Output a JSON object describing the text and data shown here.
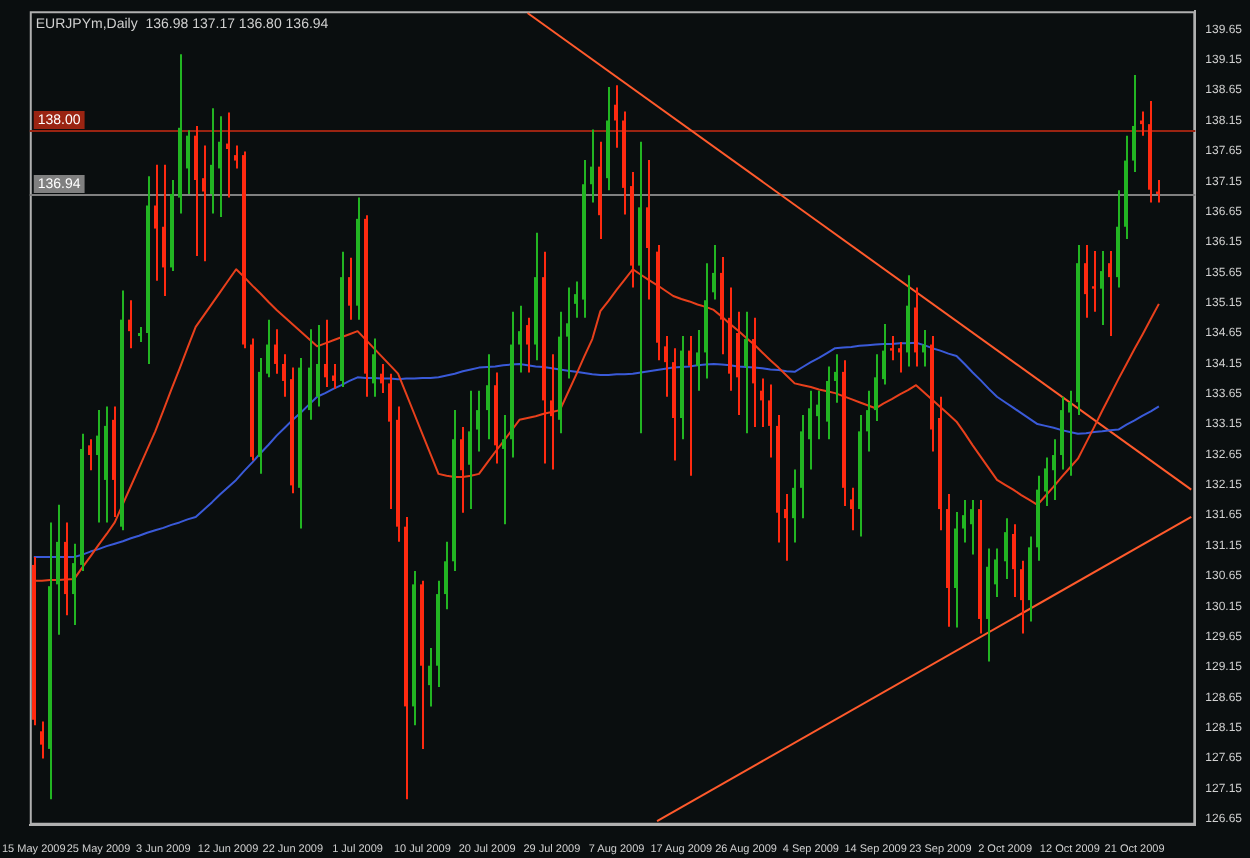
{
  "chart_data": {
    "type": "candlestick",
    "title": "EURJPYm,Daily  136.98 137.17 136.80 136.94",
    "categories": [
      "15 May 2009",
      null,
      null,
      null,
      null,
      null,
      null,
      null,
      "25 May 2009",
      null,
      null,
      null,
      null,
      null,
      null,
      null,
      "3 Jun 2009",
      null,
      null,
      null,
      null,
      null,
      null,
      null,
      "12 Jun 2009",
      null,
      null,
      null,
      null,
      null,
      null,
      null,
      "22 Jun 2009",
      null,
      null,
      null,
      null,
      null,
      null,
      null,
      "1 Jul 2009",
      null,
      null,
      null,
      null,
      null,
      null,
      null,
      "10 Jul 2009",
      null,
      null,
      null,
      null,
      null,
      null,
      null,
      "20 Jul 2009",
      null,
      null,
      null,
      null,
      null,
      null,
      null,
      "29 Jul 2009",
      null,
      null,
      null,
      null,
      null,
      null,
      null,
      "7 Aug 2009",
      null,
      null,
      null,
      null,
      null,
      null,
      null,
      "17 Aug 2009",
      null,
      null,
      null,
      null,
      null,
      null,
      null,
      "26 Aug 2009",
      null,
      null,
      null,
      null,
      null,
      null,
      null,
      "4 Sep 2009",
      null,
      null,
      null,
      null,
      null,
      null,
      null,
      "14 Sep 2009",
      null,
      null,
      null,
      null,
      null,
      null,
      null,
      "23 Sep 2009",
      null,
      null,
      null,
      null,
      null,
      null,
      null,
      "2 Oct 2009",
      null,
      null,
      null,
      null,
      null,
      null,
      null,
      "12 Oct 2009",
      null,
      null,
      null,
      null,
      null,
      null,
      null,
      "21 Oct 2009",
      null,
      null,
      null,
      null,
      null,
      null,
      null
    ],
    "ohlc": [
      [
        130.83,
        130.96,
        128.19,
        128.28
      ],
      [
        128.09,
        128.25,
        127.64,
        127.87
      ],
      [
        127.8,
        131.53,
        126.97,
        130.48
      ],
      [
        130.51,
        131.82,
        129.68,
        131.21
      ],
      [
        131.21,
        131.53,
        130.0,
        130.35
      ],
      [
        130.35,
        131.18,
        129.84,
        130.86
      ],
      [
        130.83,
        132.99,
        130.73,
        132.74
      ],
      [
        132.8,
        132.9,
        132.39,
        132.64
      ],
      [
        132.64,
        133.38,
        131.53,
        132.96
      ],
      [
        132.23,
        133.44,
        131.53,
        133.12
      ],
      [
        133.22,
        133.44,
        131.62,
        132.23
      ],
      [
        131.46,
        135.35,
        131.4,
        134.87
      ],
      [
        134.87,
        135.19,
        134.4,
        134.68
      ],
      [
        134.6,
        134.75,
        134.5,
        134.65
      ],
      [
        134.65,
        137.23,
        134.14,
        136.75
      ],
      [
        136.75,
        137.42,
        135.51,
        136.37
      ],
      [
        136.4,
        137.42,
        135.26,
        135.73
      ],
      [
        135.73,
        137.17,
        135.67,
        136.94
      ],
      [
        136.88,
        139.24,
        136.62,
        138.03
      ],
      [
        137.36,
        137.99,
        136.94,
        137.9
      ],
      [
        137.9,
        138.06,
        135.92,
        137.17
      ],
      [
        137.2,
        137.74,
        135.83,
        136.98
      ],
      [
        136.94,
        138.35,
        136.62,
        137.42
      ],
      [
        137.36,
        138.22,
        136.56,
        137.8
      ],
      [
        137.77,
        138.28,
        136.88,
        137.68
      ],
      [
        137.58,
        137.74,
        137.36,
        137.49
      ],
      [
        137.58,
        137.64,
        134.4,
        134.46
      ],
      [
        134.46,
        134.56,
        132.55,
        132.61
      ],
      [
        132.61,
        134.24,
        132.33,
        134.01
      ],
      [
        133.98,
        134.87,
        133.92,
        134.46
      ],
      [
        134.46,
        134.71,
        133.98,
        134.14
      ],
      [
        134.14,
        134.3,
        133.6,
        133.86
      ],
      [
        133.89,
        134.08,
        132.01,
        132.14
      ],
      [
        132.1,
        134.24,
        131.43,
        134.08
      ],
      [
        133.38,
        134.71,
        133.22,
        134.08
      ],
      [
        133.6,
        134.78,
        133.44,
        134.14
      ],
      [
        134.14,
        134.87,
        133.76,
        133.92
      ],
      [
        133.95,
        134.14,
        133.73,
        133.86
      ],
      [
        133.86,
        135.99,
        133.76,
        135.57
      ],
      [
        135.57,
        135.89,
        134.87,
        135.1
      ],
      [
        135.1,
        136.88,
        134.87,
        136.53
      ],
      [
        136.53,
        136.59,
        133.6,
        133.98
      ],
      [
        133.82,
        134.56,
        133.6,
        134.3
      ],
      [
        133.98,
        134.14,
        133.66,
        133.82
      ],
      [
        133.82,
        133.98,
        131.75,
        133.19
      ],
      [
        133.22,
        133.44,
        131.21,
        131.46
      ],
      [
        131.46,
        131.62,
        126.97,
        128.5
      ],
      [
        128.5,
        130.73,
        128.19,
        130.51
      ],
      [
        130.51,
        130.57,
        127.8,
        129.17
      ],
      [
        128.85,
        129.46,
        128.5,
        129.17
      ],
      [
        129.17,
        130.57,
        128.82,
        130.35
      ],
      [
        130.35,
        131.21,
        130.1,
        130.89
      ],
      [
        130.89,
        133.38,
        130.73,
        132.9
      ],
      [
        132.9,
        133.1,
        131.69,
        132.39
      ],
      [
        132.48,
        133.7,
        131.75,
        133.03
      ],
      [
        133.06,
        133.7,
        132.7,
        133.38
      ],
      [
        133.38,
        134.3,
        132.9,
        133.79
      ],
      [
        133.79,
        134.0,
        132.5,
        132.8
      ],
      [
        132.74,
        133.3,
        131.5,
        132.9
      ],
      [
        132.9,
        135.0,
        132.6,
        134.46
      ],
      [
        134.46,
        135.1,
        134.0,
        134.68
      ],
      [
        134.78,
        134.9,
        134.0,
        134.46
      ],
      [
        134.46,
        136.3,
        134.2,
        135.57
      ],
      [
        135.57,
        135.99,
        132.5,
        133.54
      ],
      [
        133.54,
        134.3,
        132.4,
        133.28
      ],
      [
        133.22,
        135.0,
        133.0,
        134.59
      ],
      [
        134.59,
        135.4,
        133.9,
        134.81
      ],
      [
        135.13,
        135.5,
        134.9,
        135.29
      ],
      [
        135.2,
        137.5,
        134.9,
        137.1
      ],
      [
        137.1,
        138.0,
        136.8,
        137.39
      ],
      [
        137.39,
        137.8,
        136.2,
        136.59
      ],
      [
        137.2,
        138.7,
        137.0,
        138.15
      ],
      [
        138.41,
        138.73,
        137.7,
        138.15
      ],
      [
        138.15,
        138.3,
        136.6,
        137.04
      ],
      [
        137.07,
        137.3,
        135.4,
        135.76
      ],
      [
        135.76,
        137.8,
        133.0,
        136.72
      ],
      [
        136.72,
        137.5,
        135.2,
        136.05
      ],
      [
        135.99,
        136.1,
        134.2,
        134.49
      ],
      [
        134.43,
        134.6,
        133.6,
        134.17
      ],
      [
        134.17,
        134.4,
        132.55,
        133.25
      ],
      [
        133.25,
        134.6,
        132.9,
        134.36
      ],
      [
        134.36,
        134.6,
        132.3,
        134.11
      ],
      [
        134.11,
        134.7,
        133.7,
        134.33
      ],
      [
        134.33,
        135.8,
        133.9,
        135.19
      ],
      [
        135.32,
        136.1,
        135.2,
        135.64
      ],
      [
        135.64,
        135.9,
        134.3,
        134.87
      ],
      [
        134.9,
        135.4,
        133.7,
        133.98
      ],
      [
        134.65,
        135.0,
        133.3,
        133.92
      ],
      [
        134.1,
        135.0,
        133.0,
        134.55
      ],
      [
        134.55,
        134.9,
        133.1,
        133.82
      ],
      [
        133.7,
        133.9,
        133.1,
        133.54
      ],
      [
        133.54,
        133.8,
        132.6,
        133.12
      ],
      [
        133.12,
        133.3,
        131.2,
        131.69
      ],
      [
        131.75,
        132.0,
        130.9,
        131.6
      ],
      [
        131.6,
        132.4,
        131.2,
        132.1
      ],
      [
        132.1,
        133.3,
        131.6,
        133.03
      ],
      [
        132.9,
        133.7,
        132.4,
        133.41
      ],
      [
        133.28,
        133.7,
        132.9,
        133.47
      ],
      [
        133.19,
        134.1,
        132.9,
        133.86
      ],
      [
        133.86,
        134.3,
        133.5,
        134.01
      ],
      [
        134.01,
        134.2,
        131.8,
        132.1
      ],
      [
        131.91,
        132.1,
        131.4,
        131.75
      ],
      [
        131.75,
        133.3,
        131.3,
        133.03
      ],
      [
        133.03,
        133.7,
        132.7,
        133.38
      ],
      [
        133.38,
        134.3,
        133.2,
        133.92
      ],
      [
        133.89,
        134.8,
        133.8,
        134.36
      ],
      [
        134.4,
        134.6,
        134.2,
        134.36
      ],
      [
        134.4,
        134.5,
        134.0,
        134.33
      ],
      [
        134.33,
        135.6,
        134.1,
        135.1
      ],
      [
        135.07,
        135.4,
        134.1,
        134.33
      ],
      [
        134.33,
        134.7,
        134.1,
        134.46
      ],
      [
        134.46,
        134.6,
        132.7,
        133.06
      ],
      [
        133.25,
        133.6,
        131.4,
        131.75
      ],
      [
        131.75,
        132.0,
        129.81,
        130.45
      ],
      [
        130.45,
        131.7,
        129.8,
        131.43
      ],
      [
        131.43,
        131.9,
        131.2,
        131.65
      ],
      [
        131.5,
        131.9,
        131.0,
        131.75
      ],
      [
        131.75,
        131.9,
        129.7,
        129.94
      ],
      [
        129.94,
        131.1,
        129.24,
        130.8
      ],
      [
        130.51,
        131.1,
        130.3,
        130.92
      ],
      [
        130.89,
        131.6,
        130.6,
        131.37
      ],
      [
        131.34,
        131.5,
        130.3,
        130.76
      ],
      [
        130.76,
        130.9,
        129.7,
        130.25
      ],
      [
        130.25,
        131.3,
        129.9,
        131.12
      ],
      [
        131.12,
        132.3,
        130.9,
        132.07
      ],
      [
        132.04,
        132.6,
        131.8,
        132.42
      ],
      [
        132.39,
        132.9,
        131.9,
        132.64
      ],
      [
        132.64,
        133.6,
        132.4,
        133.38
      ],
      [
        133.34,
        133.7,
        132.3,
        133.51
      ],
      [
        133.51,
        136.1,
        133.3,
        135.8
      ],
      [
        135.8,
        136.1,
        134.9,
        135.29
      ],
      [
        135.42,
        136.0,
        135.0,
        135.38
      ],
      [
        135.38,
        136.0,
        134.78,
        135.67
      ],
      [
        135.8,
        136.0,
        134.6,
        135.57
      ],
      [
        135.57,
        137.0,
        135.4,
        136.4
      ],
      [
        136.4,
        137.9,
        136.2,
        137.49
      ],
      [
        137.49,
        138.9,
        137.3,
        138.06
      ],
      [
        138.15,
        138.3,
        137.9,
        138.09
      ],
      [
        138.09,
        138.47,
        136.8,
        137.01
      ],
      [
        136.98,
        137.17,
        136.8,
        136.94
      ],
      null,
      null,
      null,
      null
    ],
    "colors": [
      "#ff2a10",
      "#ff2a10",
      "#22b522",
      "#22b522",
      "#ff2a10",
      "#22b522",
      "#22b522",
      "#ff2a10",
      "#22b522",
      "#22b522",
      "#ff2a10",
      "#22b522",
      "#ff2a10",
      "#22b522",
      "#22b522",
      "#ff2a10",
      "#ff2a10",
      "#22b522",
      "#22b522",
      "#22b522",
      "#ff2a10",
      "#ff2a10",
      "#22b522",
      "#22b522",
      "#ff2a10",
      "#ff2a10",
      "#ff2a10",
      "#ff2a10",
      "#22b522",
      "#22b522",
      "#ff2a10",
      "#ff2a10",
      "#ff2a10",
      "#22b522",
      "#22b522",
      "#22b522",
      "#ff2a10",
      "#ff2a10",
      "#22b522",
      "#ff2a10",
      "#22b522",
      "#ff2a10",
      "#22b522",
      "#ff2a10",
      "#ff2a10",
      "#ff2a10",
      "#ff2a10",
      "#22b522",
      "#ff2a10",
      "#22b522",
      "#22b522",
      "#22b522",
      "#22b522",
      "#ff2a10",
      "#22b522",
      "#22b522",
      "#22b522",
      "#ff2a10",
      "#22b522",
      "#22b522",
      "#22b522",
      "#ff2a10",
      "#22b522",
      "#ff2a10",
      "#ff2a10",
      "#22b522",
      "#22b522",
      "#22b522",
      "#22b522",
      "#22b522",
      "#ff2a10",
      "#22b522",
      "#ff2a10",
      "#ff2a10",
      "#ff2a10",
      "#22b522",
      "#ff2a10",
      "#ff2a10",
      "#ff2a10",
      "#ff2a10",
      "#22b522",
      "#ff2a10",
      "#22b522",
      "#22b522",
      "#22b522",
      "#ff2a10",
      "#ff2a10",
      "#ff2a10",
      "#22b522",
      "#ff2a10",
      "#ff2a10",
      "#ff2a10",
      "#ff2a10",
      "#ff2a10",
      "#22b522",
      "#22b522",
      "#22b522",
      "#22b522",
      "#22b522",
      "#22b522",
      "#ff2a10",
      "#ff2a10",
      "#22b522",
      "#22b522",
      "#22b522",
      "#22b522",
      "#ff2a10",
      "#ff2a10",
      "#22b522",
      "#ff2a10",
      "#22b522",
      "#ff2a10",
      "#ff2a10",
      "#ff2a10",
      "#22b522",
      "#22b522",
      "#22b522",
      "#ff2a10",
      "#22b522",
      "#22b522",
      "#22b522",
      "#ff2a10",
      "#ff2a10",
      "#22b522",
      "#22b522",
      "#22b522",
      "#22b522",
      "#22b522",
      "#22b522",
      "#22b522",
      "#ff2a10",
      "#ff2a10",
      "#22b522",
      "#ff2a10",
      "#22b522",
      "#22b522",
      "#22b522",
      "#ff2a10",
      "#ff2a10",
      "#ff2a10",
      null,
      null,
      null,
      null
    ],
    "series": [
      {
        "type": "line",
        "color": "#e8401c",
        "values": [
          130.57,
          130.57,
          130.58,
          130.58,
          130.59,
          130.6,
          130.79,
          130.97,
          131.16,
          131.34,
          131.53,
          131.83,
          132.13,
          132.43,
          132.73,
          133.03,
          133.37,
          133.72,
          134.06,
          134.41,
          134.75,
          134.94,
          135.13,
          135.32,
          135.51,
          135.7,
          135.57,
          135.43,
          135.3,
          135.16,
          135.03,
          134.91,
          134.79,
          134.67,
          134.55,
          134.43,
          134.48,
          134.53,
          134.58,
          134.63,
          134.68,
          134.54,
          134.4,
          134.26,
          134.12,
          133.98,
          133.65,
          133.32,
          132.99,
          132.66,
          132.33,
          132.3,
          132.28,
          132.28,
          132.3,
          132.33,
          132.51,
          132.69,
          132.86,
          133.04,
          133.22,
          133.25,
          133.28,
          133.32,
          133.35,
          133.38,
          133.67,
          133.96,
          134.26,
          134.55,
          135.01,
          135.18,
          135.36,
          135.53,
          135.7,
          135.61,
          135.52,
          135.44,
          135.35,
          135.26,
          135.21,
          135.17,
          135.12,
          135.08,
          135.03,
          134.92,
          134.8,
          134.69,
          134.57,
          134.46,
          134.33,
          134.2,
          134.08,
          133.95,
          133.82,
          133.79,
          133.76,
          133.72,
          133.69,
          133.66,
          133.61,
          133.56,
          133.51,
          133.46,
          133.41,
          133.49,
          133.56,
          133.64,
          133.71,
          133.79,
          133.67,
          133.55,
          133.43,
          133.31,
          133.19,
          133.0,
          132.8,
          132.61,
          132.42,
          132.23,
          132.15,
          132.07,
          131.98,
          131.9,
          131.82,
          131.97,
          132.12,
          132.28,
          132.43,
          132.58,
          132.84,
          133.1,
          133.37,
          133.63,
          133.89,
          134.14,
          134.39,
          134.63,
          134.88,
          135.13,
          null,
          null,
          null,
          null
        ]
      },
      {
        "type": "line",
        "color": "#3a5ad8",
        "values": [
          130.96,
          130.96,
          130.96,
          130.96,
          130.96,
          130.96,
          131.0,
          131.05,
          131.09,
          131.14,
          131.18,
          131.22,
          131.27,
          131.31,
          131.36,
          131.4,
          131.44,
          131.49,
          131.53,
          131.58,
          131.62,
          131.74,
          131.86,
          131.99,
          132.11,
          132.23,
          132.38,
          132.52,
          132.67,
          132.81,
          132.96,
          133.09,
          133.22,
          133.34,
          133.47,
          133.6,
          133.66,
          133.73,
          133.79,
          133.86,
          133.92,
          133.91,
          133.91,
          133.9,
          133.9,
          133.89,
          133.9,
          133.9,
          133.91,
          133.91,
          133.92,
          133.95,
          133.98,
          134.02,
          134.05,
          134.08,
          134.09,
          134.1,
          134.12,
          134.13,
          134.14,
          134.12,
          134.1,
          134.09,
          134.07,
          134.05,
          134.03,
          134.01,
          133.99,
          133.97,
          133.96,
          133.96,
          133.97,
          133.97,
          133.98,
          134.0,
          134.02,
          134.04,
          134.06,
          134.08,
          134.09,
          134.1,
          134.12,
          134.13,
          134.14,
          134.13,
          134.12,
          134.1,
          134.09,
          134.08,
          134.07,
          134.05,
          134.04,
          134.02,
          134.01,
          134.09,
          134.17,
          134.24,
          134.32,
          134.4,
          134.41,
          134.42,
          134.44,
          134.45,
          134.46,
          134.47,
          134.47,
          134.48,
          134.48,
          134.49,
          134.45,
          134.4,
          134.36,
          134.31,
          134.27,
          134.14,
          134.0,
          133.87,
          133.73,
          133.6,
          133.51,
          133.42,
          133.33,
          133.24,
          133.15,
          133.12,
          133.09,
          133.05,
          133.02,
          132.99,
          133.0,
          133.02,
          133.03,
          133.05,
          133.06,
          133.14,
          133.21,
          133.29,
          133.36,
          133.44,
          null,
          null,
          null,
          null
        ]
      },
      {
        "type": "line",
        "color": "#ff5a2c",
        "values": [
          null,
          null,
          null,
          null,
          null,
          null,
          null,
          null,
          null,
          null,
          null,
          null,
          null,
          null,
          null,
          null,
          null,
          null,
          null,
          null,
          null,
          null,
          null,
          null,
          null,
          null,
          null,
          null,
          null,
          null,
          null,
          null,
          null,
          null,
          null,
          null,
          null,
          null,
          null,
          null,
          null,
          null,
          null,
          null,
          null,
          null,
          null,
          null,
          null,
          null,
          null,
          null,
          null,
          null,
          null,
          null,
          null,
          null,
          null,
          null,
          null,
          139.92,
          null,
          null,
          null,
          null,
          null,
          null,
          null,
          null,
          null,
          null,
          null,
          null,
          null,
          null,
          null,
          null,
          null,
          null,
          null,
          null,
          null,
          null,
          null,
          null,
          null,
          null,
          null,
          null,
          null,
          null,
          null,
          null,
          null,
          null,
          null,
          null,
          null,
          null,
          null,
          null,
          null,
          null,
          null,
          null,
          null,
          null,
          null,
          null,
          null,
          null,
          null,
          null,
          null,
          null,
          null,
          null,
          null,
          null,
          null,
          null,
          null,
          null,
          null,
          null,
          null,
          null,
          null,
          null,
          null,
          null,
          null,
          null,
          null,
          null,
          null,
          null,
          null,
          null,
          null,
          null,
          null,
          132.07
        ]
      },
      {
        "type": "line",
        "color": "#ff5a2c",
        "values": [
          null,
          null,
          null,
          null,
          null,
          null,
          null,
          null,
          null,
          null,
          null,
          null,
          null,
          null,
          null,
          null,
          null,
          null,
          null,
          null,
          null,
          null,
          null,
          null,
          null,
          null,
          null,
          null,
          null,
          null,
          null,
          null,
          null,
          null,
          null,
          null,
          null,
          null,
          null,
          null,
          null,
          null,
          null,
          null,
          null,
          null,
          null,
          null,
          null,
          null,
          null,
          null,
          null,
          null,
          null,
          null,
          null,
          null,
          null,
          null,
          null,
          null,
          null,
          null,
          null,
          null,
          null,
          null,
          null,
          null,
          null,
          null,
          null,
          null,
          null,
          null,
          null,
          126.61,
          null,
          null,
          null,
          null,
          null,
          null,
          null,
          null,
          null,
          null,
          null,
          null,
          null,
          null,
          null,
          null,
          null,
          null,
          null,
          null,
          null,
          null,
          null,
          null,
          null,
          null,
          null,
          null,
          null,
          null,
          null,
          null,
          null,
          null,
          null,
          null,
          null,
          null,
          null,
          null,
          null,
          null,
          null,
          null,
          null,
          null,
          null,
          null,
          null,
          null,
          null,
          null,
          null,
          null,
          null,
          null,
          null,
          null,
          null,
          null,
          null,
          null,
          null,
          null,
          null,
          131.62
        ]
      }
    ],
    "ref_lines": [
      {
        "axis": "y",
        "value": 138.0,
        "label": "138.00",
        "color": "#9a2412"
      },
      {
        "axis": "y",
        "value": 136.94,
        "label": "136.94",
        "color": "#808080"
      }
    ],
    "ylim": [
      126.55,
      139.95
    ],
    "yticks": [
      139.65,
      139.15,
      138.65,
      138.15,
      137.65,
      137.15,
      136.65,
      136.15,
      135.65,
      135.15,
      134.65,
      134.15,
      133.65,
      133.15,
      132.65,
      132.15,
      131.65,
      131.15,
      130.65,
      130.15,
      129.65,
      129.15,
      128.65,
      128.15,
      127.65,
      127.15,
      126.65
    ]
  }
}
